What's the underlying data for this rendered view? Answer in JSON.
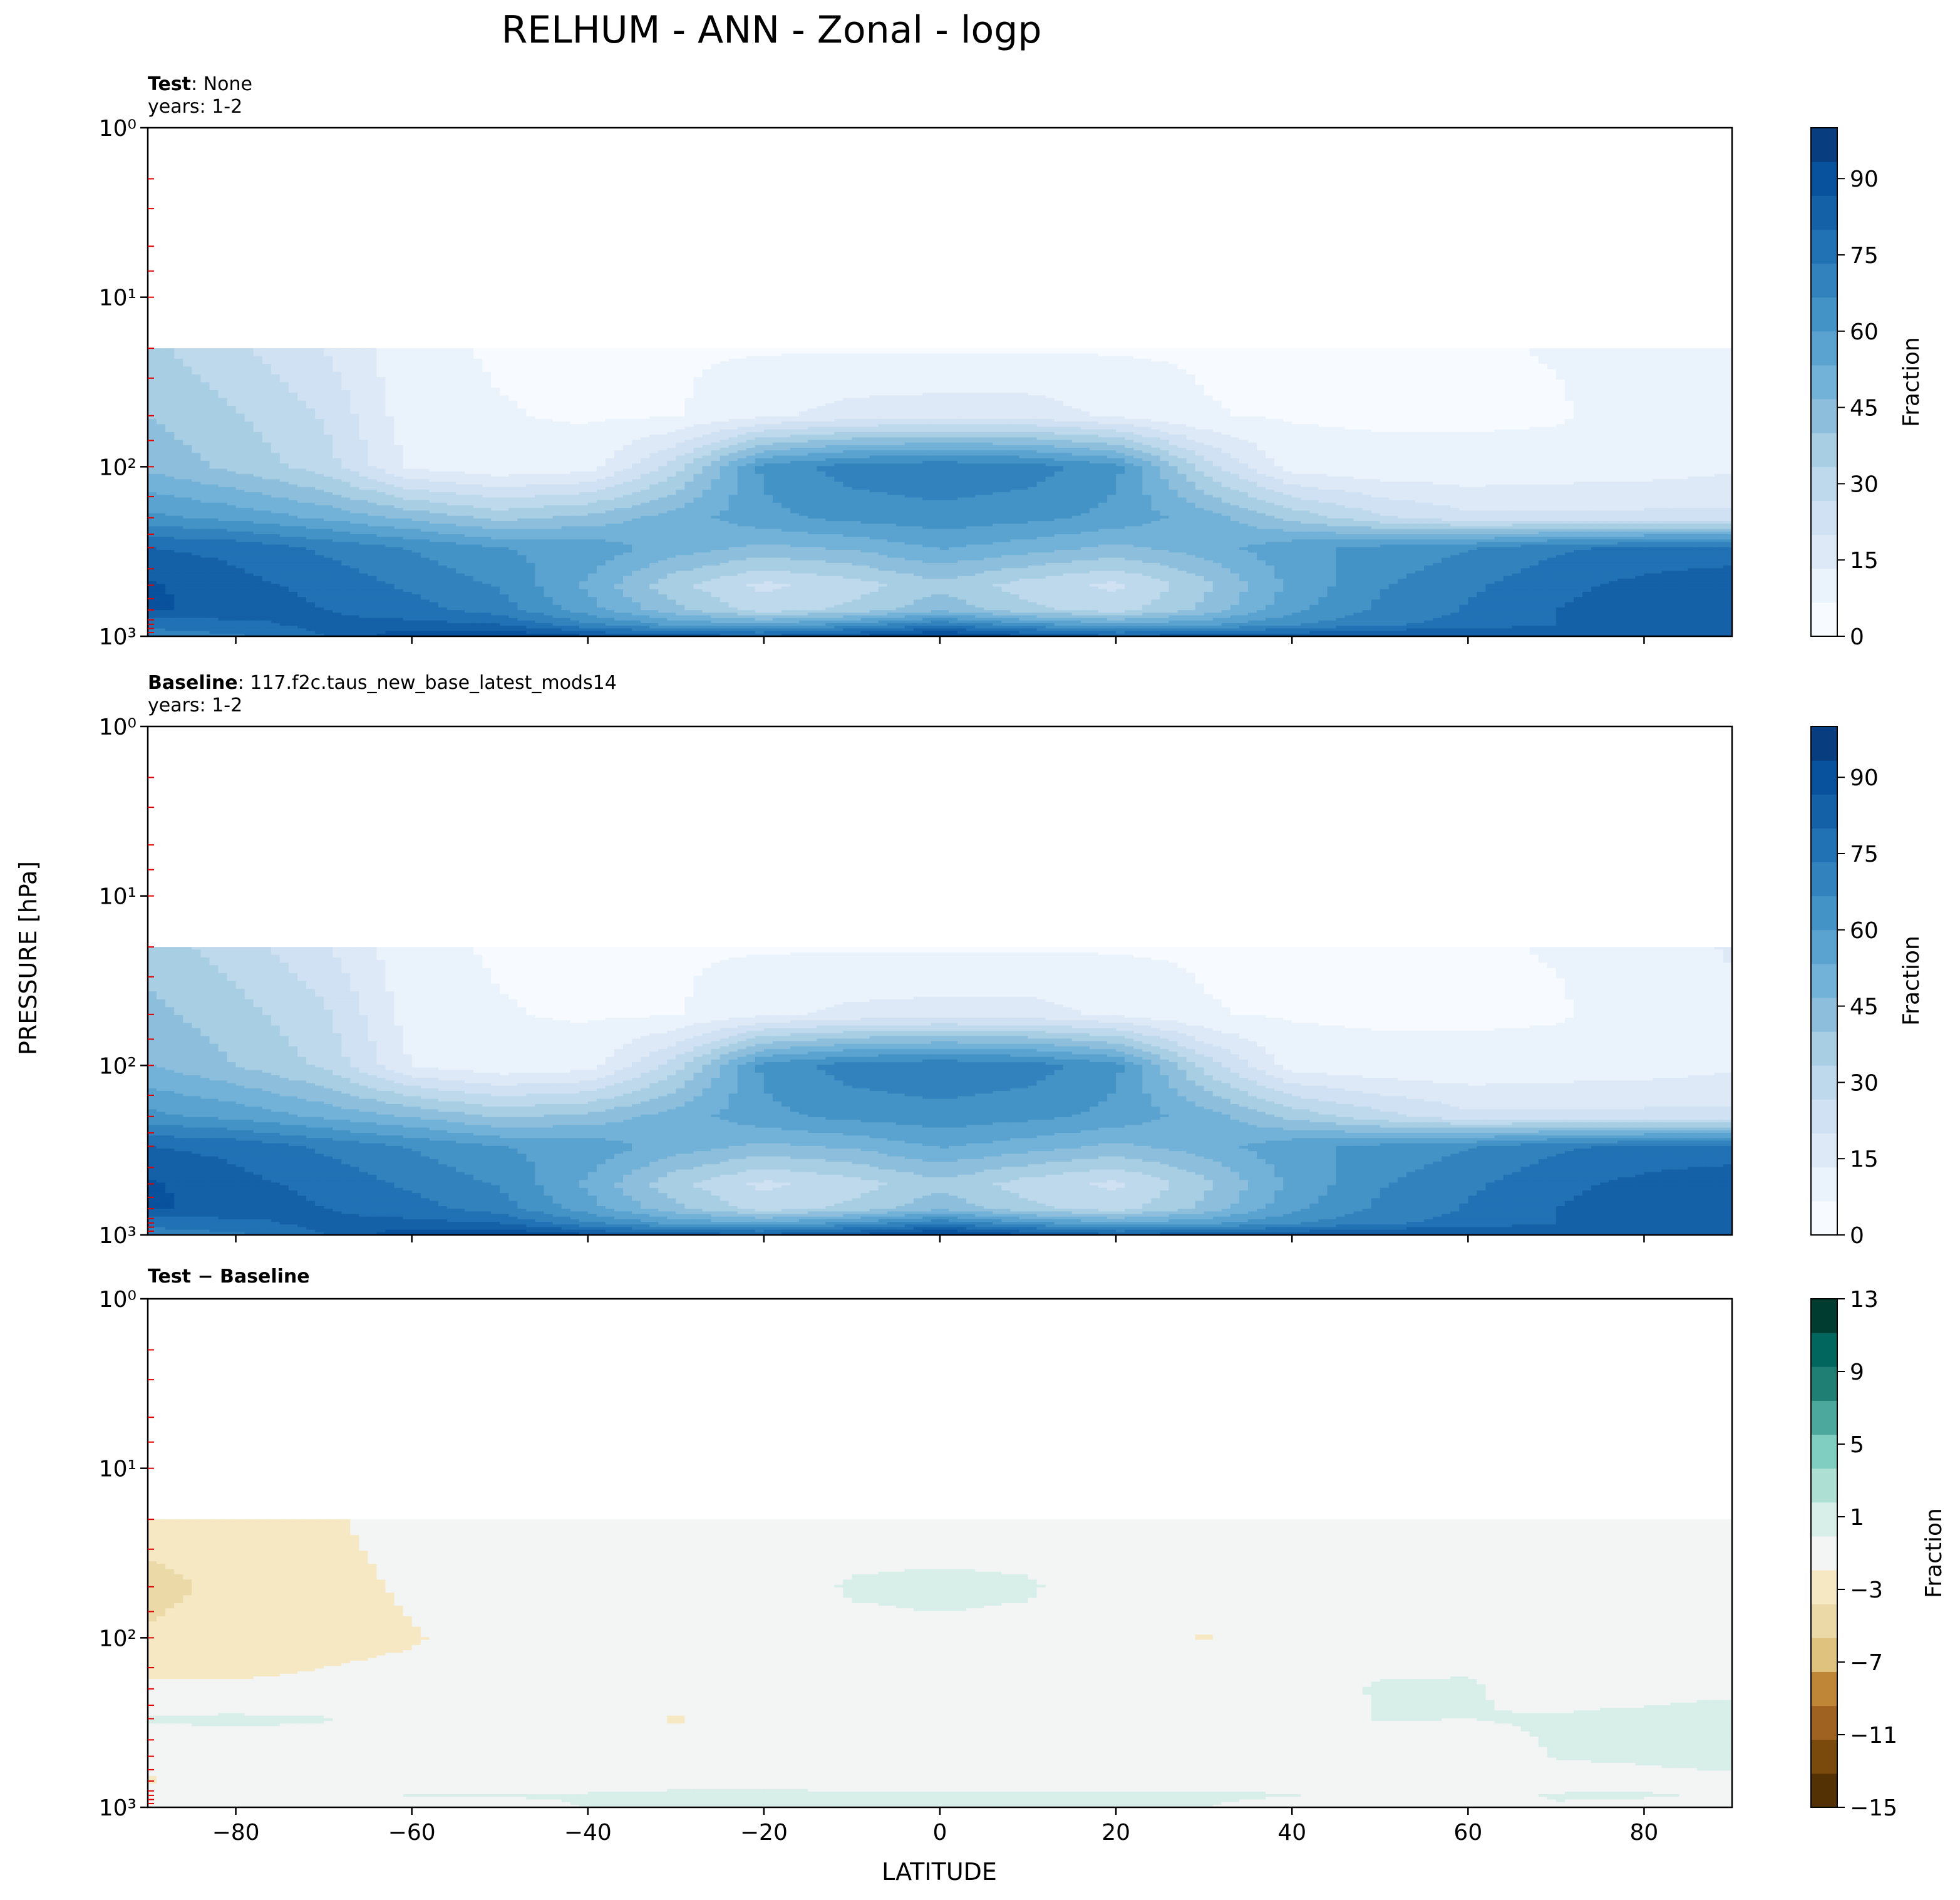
{
  "figure": {
    "title": "RELHUM - ANN - Zonal - logp",
    "ylabel": "PRESSURE [hPa]",
    "xlabel": "LATITUDE"
  },
  "colors": {
    "blues": [
      "#f7fbff",
      "#eaf3fb",
      "#dde9f6",
      "#cfe1f2",
      "#bed8ec",
      "#a8cee4",
      "#8dbfdd",
      "#72b2d8",
      "#5aa2cf",
      "#4493c6",
      "#3282be",
      "#2171b5",
      "#1461a8",
      "#08519c",
      "#083d7f"
    ],
    "brbg_neg": [
      "#543005",
      "#7a4a0c",
      "#a06220",
      "#c08637",
      "#dfc27d",
      "#ecd9a8",
      "#f6e8c3"
    ],
    "brbg_zero": "#f3f5f4",
    "brbg_pos": [
      "#d7eee9",
      "#aedfd3",
      "#80cdc1",
      "#4ca89d",
      "#1f7f75",
      "#01665e",
      "#003c30"
    ]
  },
  "chart_data": [
    {
      "type": "heatmap",
      "name": "test",
      "label_bold": "Test",
      "label_rest": ": None",
      "years": "years: 1-2",
      "xlim": [
        -90,
        90
      ],
      "ylim": [
        1000,
        1
      ],
      "yscale": "log",
      "x_ticks": [
        "−80",
        "−60",
        "−40",
        "−20",
        "0",
        "20",
        "40",
        "60",
        "80"
      ],
      "x_tick_values": [
        -80,
        -60,
        -40,
        -20,
        0,
        20,
        40,
        60,
        80
      ],
      "y_ticks": [
        "10⁰",
        "10¹",
        "10²",
        "10³"
      ],
      "colorbar": {
        "label": "Fraction",
        "ticks": [
          "0",
          "15",
          "30",
          "45",
          "60",
          "75",
          "90"
        ],
        "range": [
          0,
          100
        ]
      },
      "lat": [
        -90,
        -80,
        -70,
        -60,
        -50,
        -40,
        -30,
        -20,
        -10,
        0,
        10,
        20,
        30,
        40,
        50,
        60,
        70,
        80,
        90
      ],
      "lev": [
        5,
        10,
        20,
        50,
        100,
        200,
        300,
        500,
        700,
        850,
        1000
      ],
      "values": [
        [
          8,
          7,
          6,
          5,
          5,
          5,
          5,
          5,
          5,
          5,
          5,
          5,
          5,
          5,
          5,
          5,
          5,
          6,
          7
        ],
        [
          18,
          14,
          10,
          6,
          5,
          5,
          5,
          5,
          5,
          5,
          5,
          5,
          5,
          5,
          5,
          5,
          5,
          7,
          9
        ],
        [
          35,
          28,
          20,
          8,
          6,
          6,
          6,
          6,
          6,
          6,
          6,
          6,
          6,
          6,
          6,
          6,
          7,
          10,
          13
        ],
        [
          40,
          34,
          26,
          9,
          7,
          6,
          6,
          12,
          16,
          17,
          17,
          12,
          7,
          6,
          6,
          6,
          6,
          9,
          12
        ],
        [
          45,
          38,
          30,
          12,
          8,
          10,
          30,
          62,
          70,
          72,
          70,
          62,
          30,
          10,
          8,
          8,
          9,
          10,
          12
        ],
        [
          62,
          58,
          52,
          45,
          38,
          42,
          50,
          58,
          62,
          64,
          62,
          58,
          50,
          38,
          28,
          22,
          22,
          22,
          22
        ],
        [
          80,
          78,
          72,
          66,
          60,
          58,
          50,
          45,
          48,
          54,
          50,
          45,
          50,
          58,
          62,
          66,
          72,
          75,
          75
        ],
        [
          88,
          82,
          78,
          72,
          66,
          52,
          35,
          25,
          30,
          38,
          30,
          25,
          38,
          55,
          66,
          72,
          78,
          82,
          85
        ],
        [
          88,
          84,
          80,
          76,
          70,
          56,
          42,
          30,
          35,
          45,
          35,
          30,
          42,
          58,
          68,
          74,
          80,
          84,
          86
        ],
        [
          75,
          78,
          82,
          82,
          80,
          68,
          58,
          55,
          62,
          72,
          62,
          55,
          58,
          66,
          72,
          76,
          80,
          83,
          84
        ],
        [
          70,
          72,
          80,
          92,
          94,
          88,
          84,
          82,
          88,
          96,
          88,
          82,
          84,
          86,
          88,
          88,
          86,
          86,
          86
        ]
      ]
    },
    {
      "type": "heatmap",
      "name": "baseline",
      "label_bold": "Baseline",
      "label_rest": ": 117.f2c.taus_new_base_latest_mods14",
      "years": "years: 1-2",
      "xlim": [
        -90,
        90
      ],
      "ylim": [
        1000,
        1
      ],
      "yscale": "log",
      "x_ticks": [
        "−80",
        "−60",
        "−40",
        "−20",
        "0",
        "20",
        "40",
        "60",
        "80"
      ],
      "x_tick_values": [
        -80,
        -60,
        -40,
        -20,
        0,
        20,
        40,
        60,
        80
      ],
      "y_ticks": [
        "10⁰",
        "10¹",
        "10²",
        "10³"
      ],
      "colorbar": {
        "label": "Fraction",
        "ticks": [
          "0",
          "15",
          "30",
          "45",
          "60",
          "75",
          "90"
        ],
        "range": [
          0,
          100
        ]
      },
      "lat": [
        -90,
        -80,
        -70,
        -60,
        -50,
        -40,
        -30,
        -20,
        -10,
        0,
        10,
        20,
        30,
        40,
        50,
        60,
        70,
        80,
        90
      ],
      "lev": [
        5,
        10,
        20,
        50,
        100,
        200,
        300,
        500,
        700,
        850,
        1000
      ],
      "values": [
        [
          8,
          7,
          6,
          5,
          5,
          5,
          5,
          5,
          5,
          5,
          5,
          5,
          5,
          5,
          5,
          5,
          5,
          6,
          7
        ],
        [
          19,
          15,
          11,
          6,
          5,
          5,
          5,
          5,
          5,
          5,
          5,
          5,
          5,
          5,
          5,
          5,
          5,
          7,
          9
        ],
        [
          37,
          30,
          21,
          8,
          6,
          6,
          6,
          6,
          6,
          6,
          6,
          6,
          6,
          6,
          6,
          6,
          7,
          10,
          14
        ],
        [
          42,
          36,
          28,
          10,
          7,
          6,
          6,
          12,
          15,
          16,
          16,
          12,
          7,
          6,
          6,
          6,
          6,
          9,
          12
        ],
        [
          47,
          40,
          32,
          13,
          8,
          10,
          30,
          62,
          70,
          72,
          70,
          62,
          31,
          10,
          8,
          8,
          9,
          10,
          12
        ],
        [
          62,
          58,
          52,
          46,
          39,
          42,
          50,
          58,
          62,
          64,
          62,
          58,
          50,
          38,
          29,
          22,
          22,
          22,
          22
        ],
        [
          80,
          78,
          72,
          66,
          60,
          58,
          50,
          45,
          48,
          54,
          50,
          45,
          50,
          58,
          62,
          66,
          72,
          75,
          75
        ],
        [
          88,
          82,
          78,
          72,
          66,
          52,
          35,
          25,
          30,
          38,
          30,
          25,
          38,
          55,
          66,
          72,
          78,
          82,
          85
        ],
        [
          88,
          84,
          80,
          76,
          70,
          56,
          42,
          30,
          35,
          45,
          35,
          30,
          42,
          58,
          68,
          74,
          80,
          84,
          86
        ],
        [
          75,
          78,
          82,
          82,
          80,
          68,
          58,
          55,
          62,
          72,
          62,
          55,
          58,
          66,
          72,
          76,
          80,
          83,
          84
        ],
        [
          70,
          72,
          80,
          92,
          94,
          88,
          84,
          82,
          88,
          96,
          88,
          82,
          84,
          86,
          88,
          88,
          86,
          86,
          86
        ]
      ]
    },
    {
      "type": "heatmap",
      "name": "difference",
      "label_bold": "Test − Baseline",
      "label_rest": "",
      "years": "",
      "xlim": [
        -90,
        90
      ],
      "ylim": [
        1000,
        1
      ],
      "yscale": "log",
      "x_ticks": [
        "−80",
        "−60",
        "−40",
        "−20",
        "0",
        "20",
        "40",
        "60",
        "80"
      ],
      "x_tick_values": [
        -80,
        -60,
        -40,
        -20,
        0,
        20,
        40,
        60,
        80
      ],
      "y_ticks": [
        "10⁰",
        "10¹",
        "10²",
        "10³"
      ],
      "colorbar": {
        "label": "Fraction",
        "ticks": [
          "−15",
          "−11",
          "−7",
          "−3",
          "1",
          "5",
          "9",
          "13"
        ],
        "range": [
          -15,
          13
        ]
      },
      "lat": [
        -90,
        -80,
        -70,
        -60,
        -50,
        -40,
        -30,
        -20,
        -10,
        0,
        10,
        20,
        30,
        40,
        50,
        60,
        70,
        80,
        90
      ],
      "lev": [
        5,
        10,
        20,
        50,
        100,
        200,
        300,
        500,
        700,
        850,
        1000
      ],
      "values": [
        [
          0,
          0,
          0,
          0,
          0,
          0,
          0,
          0,
          0,
          0,
          0,
          0,
          0,
          0,
          0,
          0,
          0,
          0,
          0
        ],
        [
          -1.2,
          -1.0,
          -0.5,
          0,
          0,
          0,
          0,
          0,
          0,
          0,
          0,
          0,
          0,
          0,
          0,
          0,
          0,
          0,
          0
        ],
        [
          -2.3,
          -2.0,
          -1.2,
          -0.4,
          0,
          0,
          0,
          0,
          0,
          0,
          0,
          0,
          0,
          0,
          0,
          0,
          0,
          0,
          -0.5
        ],
        [
          -3.5,
          -2.6,
          -1.5,
          -0.8,
          0,
          0,
          0,
          0,
          1.2,
          1.4,
          1.2,
          0,
          0,
          0,
          0,
          0,
          0,
          0,
          -0.3
        ],
        [
          -2.8,
          -2.2,
          -1.4,
          -1.1,
          -0.5,
          0,
          0,
          0,
          0.5,
          0.6,
          0.5,
          0,
          -1.1,
          0,
          0,
          0,
          0,
          0,
          0
        ],
        [
          -0.5,
          -0.7,
          -0.7,
          -0.6,
          -0.3,
          0,
          0,
          0,
          0,
          0,
          0,
          0,
          0,
          0,
          1.2,
          1.3,
          0,
          -0.5,
          0
        ],
        [
          1.2,
          1.3,
          1.1,
          0,
          0,
          0,
          -1.2,
          0,
          0,
          0,
          0,
          0,
          0,
          0,
          1.1,
          1.0,
          1.2,
          2.0,
          3.0
        ],
        [
          -0.6,
          0,
          0,
          0,
          0,
          0,
          0,
          0,
          0,
          0,
          0,
          0,
          0,
          0,
          0,
          0,
          1.1,
          1.5,
          2.5
        ],
        [
          -1.2,
          0,
          0,
          0,
          0,
          0,
          0,
          0,
          0,
          0,
          0,
          0,
          0,
          0,
          0,
          0,
          0,
          0,
          0
        ],
        [
          0,
          0,
          0,
          1.1,
          1.2,
          1.2,
          1.6,
          1.7,
          1.4,
          1.3,
          1.3,
          1.4,
          1.5,
          1.1,
          0,
          0,
          1.2,
          1.3,
          0.5
        ],
        [
          0,
          0,
          -0.6,
          -1.0,
          0,
          1.1,
          1.4,
          1.3,
          1.3,
          1.3,
          1.2,
          1.1,
          1.0,
          0,
          0,
          0,
          0.8,
          0,
          0
        ]
      ]
    }
  ]
}
